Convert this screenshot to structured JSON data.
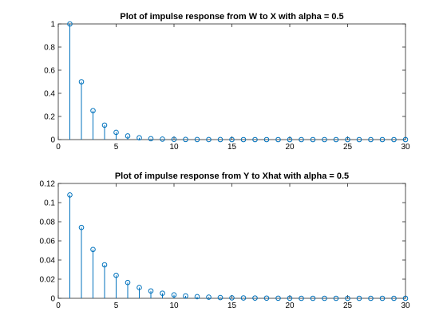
{
  "chart_data": [
    {
      "type": "stem",
      "title": "Plot of impulse response from W to X with alpha = 0.5",
      "xlabel": "",
      "ylabel": "",
      "xlim": [
        0,
        30
      ],
      "ylim": [
        0,
        1
      ],
      "xticks": [
        0,
        5,
        10,
        15,
        20,
        25,
        30
      ],
      "yticks": [
        0,
        0.2,
        0.4,
        0.6,
        0.8,
        1
      ],
      "ytick_labels": [
        "0",
        "0.2",
        "0.4",
        "0.6",
        "0.8",
        "1"
      ],
      "grid": false,
      "color": "#0072BD",
      "x": [
        1,
        2,
        3,
        4,
        5,
        6,
        7,
        8,
        9,
        10,
        11,
        12,
        13,
        14,
        15,
        16,
        17,
        18,
        19,
        20,
        21,
        22,
        23,
        24,
        25,
        26,
        27,
        28,
        29,
        30
      ],
      "y": [
        1,
        0.5,
        0.25,
        0.125,
        0.0625,
        0.03125,
        0.015625,
        0.0078,
        0.0039,
        0.002,
        0.001,
        0.0005,
        0.0002,
        0.0001,
        0.0001,
        0,
        0,
        0,
        0,
        0,
        0,
        0,
        0,
        0,
        0,
        0,
        0,
        0,
        0,
        0
      ]
    },
    {
      "type": "stem",
      "title": "Plot of impulse response from Y to Xhat with alpha = 0.5",
      "xlabel": "",
      "ylabel": "",
      "xlim": [
        0,
        30
      ],
      "ylim": [
        0,
        0.12
      ],
      "xticks": [
        0,
        5,
        10,
        15,
        20,
        25,
        30
      ],
      "yticks": [
        0,
        0.02,
        0.04,
        0.06,
        0.08,
        0.1,
        0.12
      ],
      "ytick_labels": [
        "0",
        "0.02",
        "0.04",
        "0.06",
        "0.08",
        "0.1",
        "0.12"
      ],
      "grid": false,
      "color": "#0072BD",
      "x": [
        1,
        2,
        3,
        4,
        5,
        6,
        7,
        8,
        9,
        10,
        11,
        12,
        13,
        14,
        15,
        16,
        17,
        18,
        19,
        20,
        21,
        22,
        23,
        24,
        25,
        26,
        27,
        28,
        29,
        30
      ],
      "y": [
        0.108,
        0.074,
        0.051,
        0.035,
        0.024,
        0.0165,
        0.0113,
        0.0077,
        0.0053,
        0.0036,
        0.0025,
        0.0017,
        0.0012,
        0.0008,
        0.0005,
        0.0004,
        0.0003,
        0.0002,
        0.0001,
        0.0001,
        0,
        0,
        0,
        0,
        0,
        0,
        0,
        0,
        0,
        0
      ]
    }
  ]
}
